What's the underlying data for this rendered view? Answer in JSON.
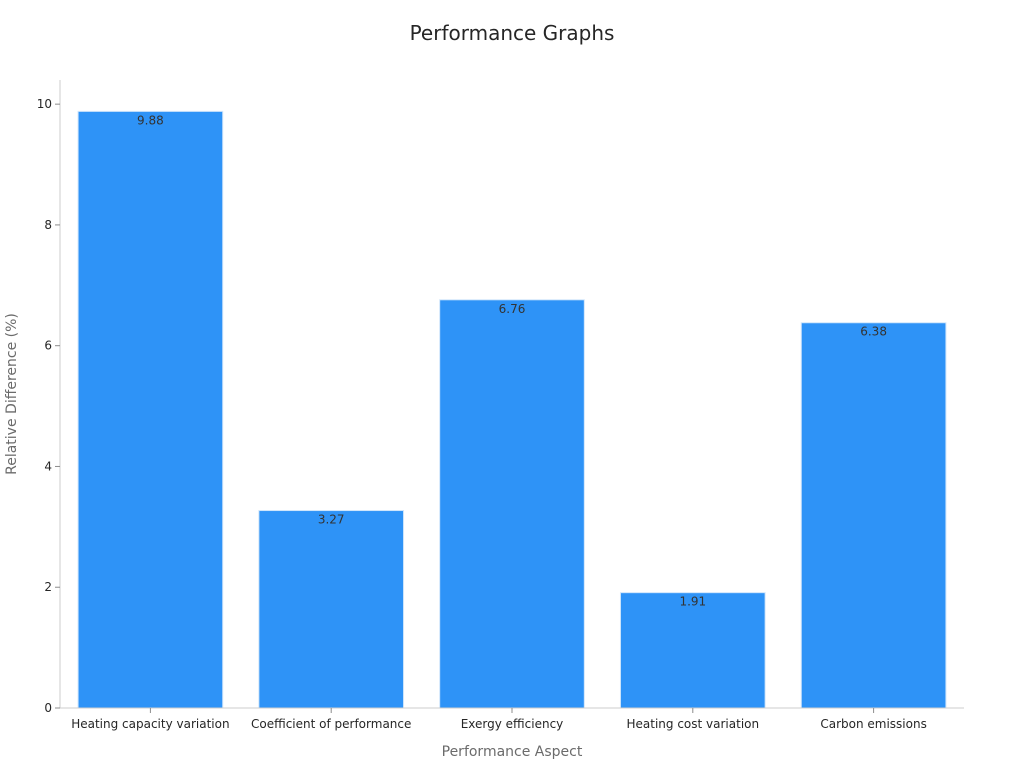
{
  "chart_data": {
    "type": "bar",
    "title": "Performance Graphs",
    "xlabel": "Performance Aspect",
    "ylabel": "Relative Difference (%)",
    "categories": [
      "Heating capacity variation",
      "Coefficient of performance",
      "Exergy efficiency",
      "Heating cost variation",
      "Carbon emissions"
    ],
    "values": [
      9.88,
      3.27,
      6.76,
      1.91,
      6.38
    ],
    "data_labels": [
      "9.88",
      "3.27",
      "6.76",
      "1.91",
      "6.38"
    ],
    "ylim": [
      0,
      10.4
    ],
    "yticks": [
      0,
      2,
      4,
      6,
      8,
      10
    ],
    "ytick_labels": [
      "0",
      "2",
      "4",
      "6",
      "8",
      "10"
    ],
    "grid": false,
    "legend": "none",
    "bar_color": "#2e93f7",
    "bar_edge_color": "#cfe5fb"
  }
}
